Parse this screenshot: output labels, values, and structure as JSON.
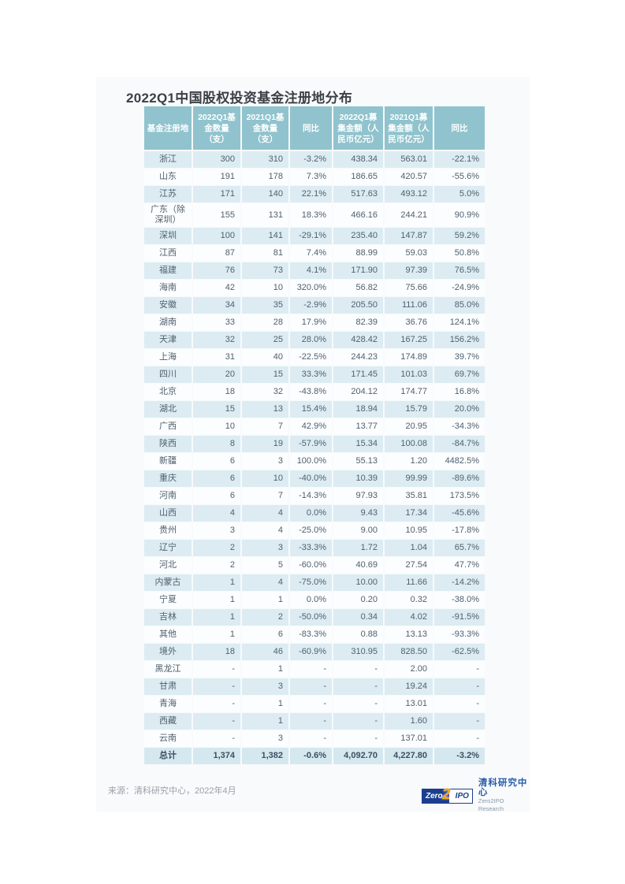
{
  "page": {
    "title": "2022Q1中国股权投资基金注册地分布",
    "source_note": "来源：清科研究中心，2022年4月"
  },
  "chart_data": {
    "type": "table",
    "title": "2022Q1中国股权投资基金注册地分布",
    "columns": [
      "基金注册地",
      "2022Q1基金数量（支）",
      "2021Q1基金数量（支）",
      "同比",
      "2022Q1募集金额（人民币亿元）",
      "2021Q1募集金额（人民币亿元）",
      "同比"
    ],
    "rows": [
      [
        "浙江",
        "300",
        "310",
        "-3.2%",
        "438.34",
        "563.01",
        "-22.1%"
      ],
      [
        "山东",
        "191",
        "178",
        "7.3%",
        "186.65",
        "420.57",
        "-55.6%"
      ],
      [
        "江苏",
        "171",
        "140",
        "22.1%",
        "517.63",
        "493.12",
        "5.0%"
      ],
      [
        "广东（除深圳）",
        "155",
        "131",
        "18.3%",
        "466.16",
        "244.21",
        "90.9%"
      ],
      [
        "深圳",
        "100",
        "141",
        "-29.1%",
        "235.40",
        "147.87",
        "59.2%"
      ],
      [
        "江西",
        "87",
        "81",
        "7.4%",
        "88.99",
        "59.03",
        "50.8%"
      ],
      [
        "福建",
        "76",
        "73",
        "4.1%",
        "171.90",
        "97.39",
        "76.5%"
      ],
      [
        "海南",
        "42",
        "10",
        "320.0%",
        "56.82",
        "75.66",
        "-24.9%"
      ],
      [
        "安徽",
        "34",
        "35",
        "-2.9%",
        "205.50",
        "111.06",
        "85.0%"
      ],
      [
        "湖南",
        "33",
        "28",
        "17.9%",
        "82.39",
        "36.76",
        "124.1%"
      ],
      [
        "天津",
        "32",
        "25",
        "28.0%",
        "428.42",
        "167.25",
        "156.2%"
      ],
      [
        "上海",
        "31",
        "40",
        "-22.5%",
        "244.23",
        "174.89",
        "39.7%"
      ],
      [
        "四川",
        "20",
        "15",
        "33.3%",
        "171.45",
        "101.03",
        "69.7%"
      ],
      [
        "北京",
        "18",
        "32",
        "-43.8%",
        "204.12",
        "174.77",
        "16.8%"
      ],
      [
        "湖北",
        "15",
        "13",
        "15.4%",
        "18.94",
        "15.79",
        "20.0%"
      ],
      [
        "广西",
        "10",
        "7",
        "42.9%",
        "13.77",
        "20.95",
        "-34.3%"
      ],
      [
        "陕西",
        "8",
        "19",
        "-57.9%",
        "15.34",
        "100.08",
        "-84.7%"
      ],
      [
        "新疆",
        "6",
        "3",
        "100.0%",
        "55.13",
        "1.20",
        "4482.5%"
      ],
      [
        "重庆",
        "6",
        "10",
        "-40.0%",
        "10.39",
        "99.99",
        "-89.6%"
      ],
      [
        "河南",
        "6",
        "7",
        "-14.3%",
        "97.93",
        "35.81",
        "173.5%"
      ],
      [
        "山西",
        "4",
        "4",
        "0.0%",
        "9.43",
        "17.34",
        "-45.6%"
      ],
      [
        "贵州",
        "3",
        "4",
        "-25.0%",
        "9.00",
        "10.95",
        "-17.8%"
      ],
      [
        "辽宁",
        "2",
        "3",
        "-33.3%",
        "1.72",
        "1.04",
        "65.7%"
      ],
      [
        "河北",
        "2",
        "5",
        "-60.0%",
        "40.69",
        "27.54",
        "47.7%"
      ],
      [
        "内蒙古",
        "1",
        "4",
        "-75.0%",
        "10.00",
        "11.66",
        "-14.2%"
      ],
      [
        "宁夏",
        "1",
        "1",
        "0.0%",
        "0.20",
        "0.32",
        "-38.0%"
      ],
      [
        "吉林",
        "1",
        "2",
        "-50.0%",
        "0.34",
        "4.02",
        "-91.5%"
      ],
      [
        "其他",
        "1",
        "6",
        "-83.3%",
        "0.88",
        "13.13",
        "-93.3%"
      ],
      [
        "境外",
        "18",
        "46",
        "-60.9%",
        "310.95",
        "828.50",
        "-62.5%"
      ],
      [
        "黑龙江",
        "-",
        "1",
        "-",
        "-",
        "2.00",
        "-"
      ],
      [
        "甘肃",
        "-",
        "3",
        "-",
        "-",
        "19.24",
        "-"
      ],
      [
        "青海",
        "-",
        "1",
        "-",
        "-",
        "13.01",
        "-"
      ],
      [
        "西藏",
        "-",
        "1",
        "-",
        "-",
        "1.60",
        "-"
      ],
      [
        "云南",
        "-",
        "3",
        "-",
        "-",
        "137.01",
        "-"
      ]
    ],
    "total_row": [
      "总计",
      "1,374",
      "1,382",
      "-0.6%",
      "4,092.70",
      "4,227.80",
      "-3.2%"
    ]
  },
  "table_display": {
    "header_lines": [
      "基金注册地",
      "2022Q1基\n金数量\n（支）",
      "2021Q1基\n金数量（支）",
      "同比",
      "2022Q1募\n集金额（人\n民币亿元）",
      "2021Q1募\n集金额（人\n民币亿元）",
      "同比"
    ]
  },
  "logo": {
    "zero_label": "Zero",
    "two_label": "2",
    "ipo_label": "IPO",
    "name_cn": "清科研究中心",
    "name_en": "Zero2IPO Research"
  },
  "colors": {
    "header_bg": "#90c3cd",
    "row_alt_bg": "#dcecf2",
    "total_row_bg": "#d5e8ef",
    "table_text": "#51606e",
    "logo_navy": "#1c3e8f",
    "logo_orange": "#f6a31c",
    "logo_blue": "#2a5caa"
  }
}
